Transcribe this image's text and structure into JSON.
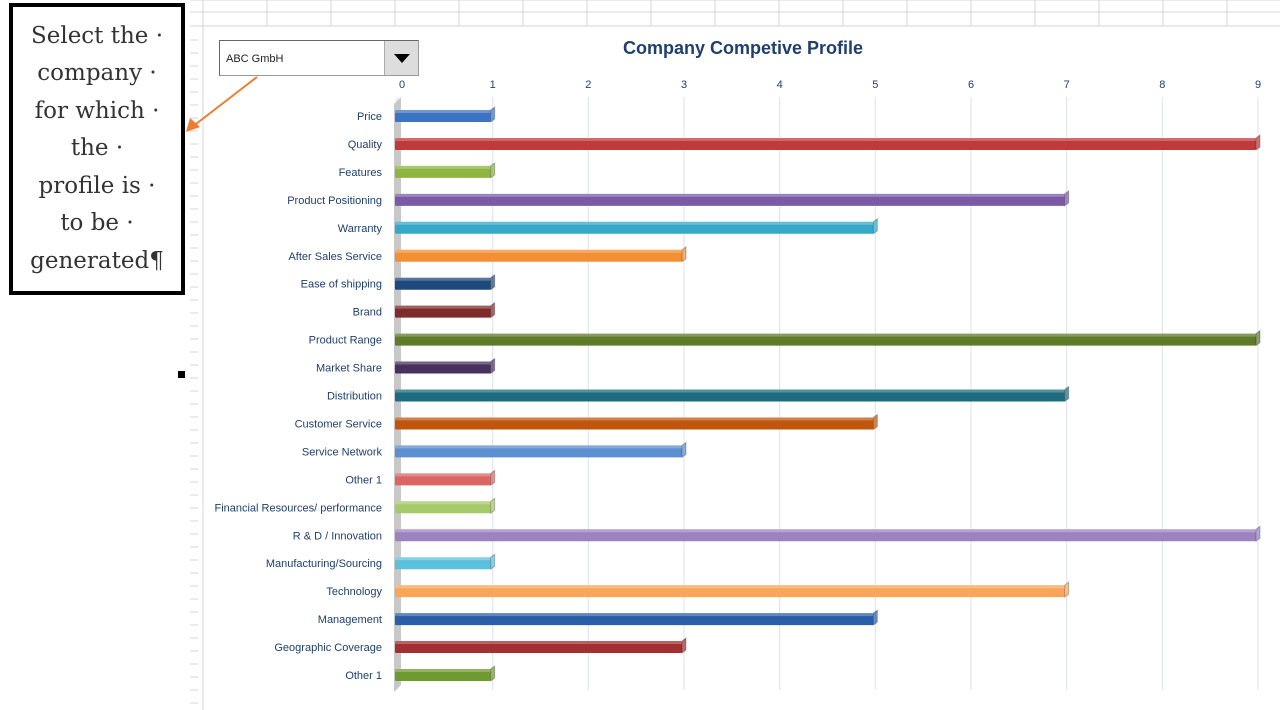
{
  "callout": {
    "text": "Select the ·\ncompany ·\nfor which ·\nthe ·\nprofile is ·\nto be ·\ngenerated¶"
  },
  "dropdown": {
    "selected": "ABC GmbH"
  },
  "chart_data": {
    "type": "bar",
    "orientation": "horizontal",
    "title": "Company Competive Profile",
    "xlim": [
      0,
      9
    ],
    "xticks": [
      "0",
      "1",
      "2",
      "3",
      "4",
      "5",
      "6",
      "7",
      "8",
      "9"
    ],
    "grid": true,
    "categories": [
      "Price",
      "Quality",
      "Features",
      "Product Positioning",
      "Warranty",
      "After Sales Service",
      "Ease of shipping",
      "Brand",
      "Product Range",
      "Market Share",
      "Distribution",
      "Customer Service",
      "Service Network",
      "Other 1",
      "Financial Resources/ performance",
      "R & D / Innovation",
      "Manufacturing/Sourcing",
      "Technology",
      "Management ",
      "Geographic Coverage",
      "Other 1"
    ],
    "values": [
      1,
      9,
      1,
      7,
      5,
      3,
      1,
      1,
      9,
      1,
      7,
      5,
      3,
      1,
      1,
      9,
      1,
      7,
      5,
      3,
      1
    ],
    "colors": [
      "#3b74c2",
      "#c0393b",
      "#8db53f",
      "#7a5aa6",
      "#36a8c8",
      "#f39035",
      "#1f497d",
      "#7f2b2b",
      "#5f7a28",
      "#46315f",
      "#1e6b7f",
      "#c0560e",
      "#5b8fd0",
      "#d96565",
      "#a6c96a",
      "#9c83c0",
      "#5bc0dc",
      "#f9a65a",
      "#2a5ea8",
      "#a33030",
      "#6f9a2f"
    ]
  }
}
